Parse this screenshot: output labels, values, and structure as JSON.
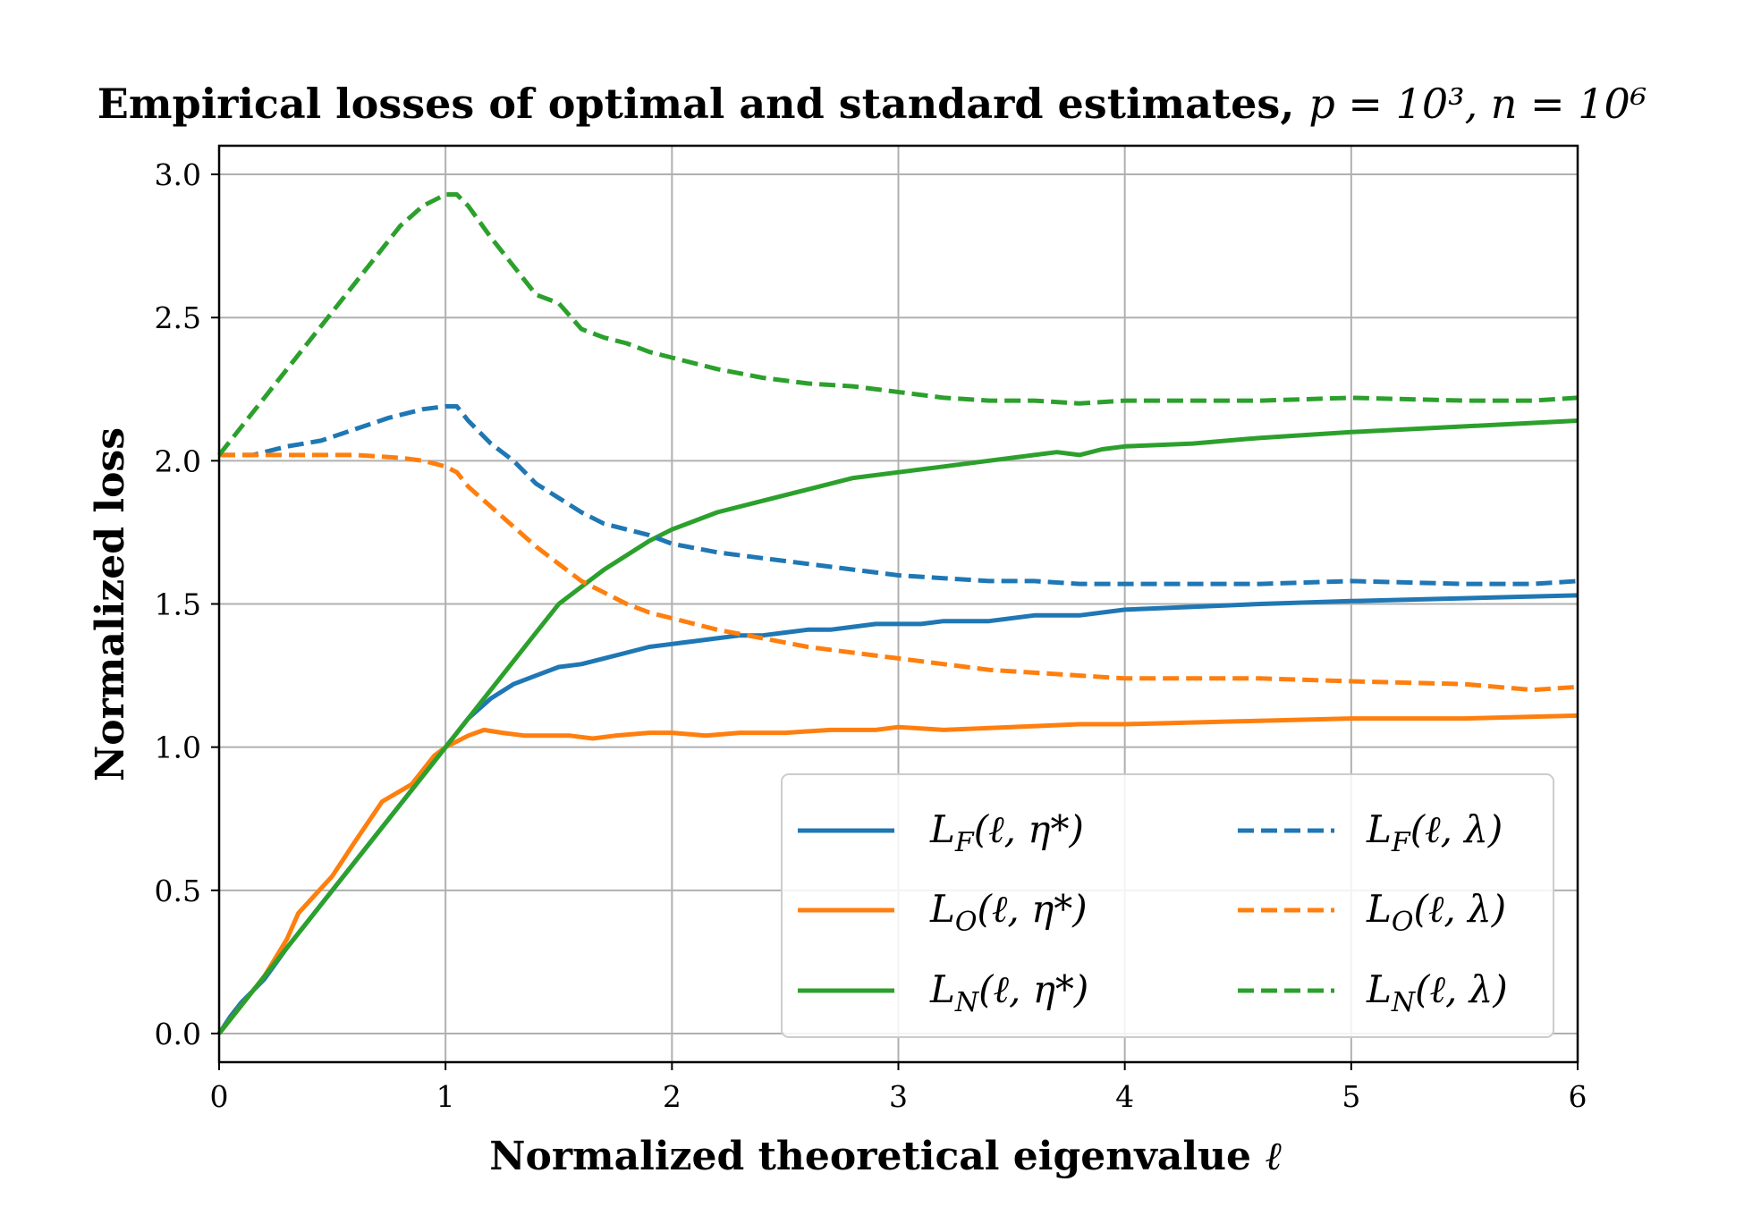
{
  "chart_data": {
    "type": "line",
    "title_text": "Empirical losses of optimal and standard estimates, ",
    "title_math": "p = 10³, n = 10⁶",
    "xlabel_text": "Normalized theoretical eigenvalue ",
    "xlabel_math": "ℓ",
    "ylabel": "Normalized loss",
    "xlim": [
      0,
      6
    ],
    "ylim": [
      -0.1,
      3.1
    ],
    "xticks": [
      0,
      1,
      2,
      3,
      4,
      5,
      6
    ],
    "yticks": [
      0.0,
      0.5,
      1.0,
      1.5,
      2.0,
      2.5,
      3.0
    ],
    "xtick_labels": [
      "0",
      "1",
      "2",
      "3",
      "4",
      "5",
      "6"
    ],
    "ytick_labels": [
      "0.0",
      "0.5",
      "1.0",
      "1.5",
      "2.0",
      "2.5",
      "3.0"
    ],
    "grid": true,
    "legend_position": "lower-right",
    "colors": {
      "blue": "#1f77b4",
      "orange": "#ff7f0e",
      "green": "#2ca02c"
    },
    "series": [
      {
        "name": "L_F(ℓ, η*)",
        "color": "#1f77b4",
        "dash": "solid",
        "x": [
          0,
          0.05,
          0.1,
          0.2,
          0.3,
          0.5,
          0.7,
          0.9,
          1.0,
          1.1,
          1.2,
          1.3,
          1.4,
          1.5,
          1.6,
          1.7,
          1.8,
          1.9,
          2.0,
          2.1,
          2.2,
          2.3,
          2.4,
          2.5,
          2.6,
          2.7,
          2.8,
          2.9,
          3.0,
          3.1,
          3.2,
          3.4,
          3.6,
          3.8,
          4.0,
          4.3,
          4.6,
          5.0,
          5.5,
          6.0
        ],
        "y": [
          0,
          0.06,
          0.11,
          0.19,
          0.3,
          0.5,
          0.7,
          0.9,
          1.0,
          1.1,
          1.17,
          1.22,
          1.25,
          1.28,
          1.29,
          1.31,
          1.33,
          1.35,
          1.36,
          1.37,
          1.38,
          1.39,
          1.39,
          1.4,
          1.41,
          1.41,
          1.42,
          1.43,
          1.43,
          1.43,
          1.44,
          1.44,
          1.46,
          1.46,
          1.48,
          1.49,
          1.5,
          1.51,
          1.52,
          1.53
        ]
      },
      {
        "name": "L_O(ℓ, η*)",
        "color": "#ff7f0e",
        "dash": "solid",
        "x": [
          0,
          0.1,
          0.2,
          0.3,
          0.35,
          0.5,
          0.6,
          0.72,
          0.85,
          0.95,
          1.0,
          1.1,
          1.17,
          1.25,
          1.35,
          1.45,
          1.55,
          1.65,
          1.75,
          1.9,
          2.0,
          2.15,
          2.3,
          2.5,
          2.7,
          2.9,
          3.0,
          3.2,
          3.5,
          3.8,
          4.0,
          4.5,
          5.0,
          5.5,
          6.0
        ],
        "y": [
          0,
          0.1,
          0.2,
          0.33,
          0.42,
          0.55,
          0.67,
          0.81,
          0.87,
          0.97,
          1.0,
          1.04,
          1.06,
          1.05,
          1.04,
          1.04,
          1.04,
          1.03,
          1.04,
          1.05,
          1.05,
          1.04,
          1.05,
          1.05,
          1.06,
          1.06,
          1.07,
          1.06,
          1.07,
          1.08,
          1.08,
          1.09,
          1.1,
          1.1,
          1.11
        ]
      },
      {
        "name": "L_N(ℓ, η*)",
        "color": "#2ca02c",
        "dash": "solid",
        "x": [
          0,
          0.25,
          0.5,
          0.75,
          1.0,
          1.2,
          1.4,
          1.5,
          1.7,
          1.9,
          2.0,
          2.2,
          2.4,
          2.6,
          2.8,
          3.0,
          3.2,
          3.4,
          3.6,
          3.7,
          3.8,
          3.9,
          4.0,
          4.3,
          4.6,
          5.0,
          5.5,
          6.0
        ],
        "y": [
          0,
          0.25,
          0.5,
          0.75,
          1.0,
          1.2,
          1.4,
          1.5,
          1.62,
          1.72,
          1.76,
          1.82,
          1.86,
          1.9,
          1.94,
          1.96,
          1.98,
          2.0,
          2.02,
          2.03,
          2.02,
          2.04,
          2.05,
          2.06,
          2.08,
          2.1,
          2.12,
          2.14
        ]
      },
      {
        "name": "L_F(ℓ, λ)",
        "color": "#1f77b4",
        "dash": "dashed",
        "x": [
          0,
          0.15,
          0.3,
          0.45,
          0.6,
          0.75,
          0.9,
          1.0,
          1.05,
          1.1,
          1.2,
          1.3,
          1.4,
          1.5,
          1.6,
          1.7,
          1.8,
          1.9,
          2.0,
          2.2,
          2.4,
          2.6,
          2.8,
          3.0,
          3.2,
          3.4,
          3.6,
          3.8,
          4.0,
          4.3,
          4.6,
          5.0,
          5.5,
          5.8,
          6.0
        ],
        "y": [
          2.02,
          2.02,
          2.05,
          2.07,
          2.11,
          2.15,
          2.18,
          2.19,
          2.19,
          2.14,
          2.06,
          2.0,
          1.92,
          1.87,
          1.82,
          1.78,
          1.76,
          1.74,
          1.71,
          1.68,
          1.66,
          1.64,
          1.62,
          1.6,
          1.59,
          1.58,
          1.58,
          1.57,
          1.57,
          1.57,
          1.57,
          1.58,
          1.57,
          1.57,
          1.58
        ]
      },
      {
        "name": "L_O(ℓ, λ)",
        "color": "#ff7f0e",
        "dash": "dashed",
        "x": [
          0,
          0.2,
          0.4,
          0.6,
          0.8,
          0.9,
          1.0,
          1.05,
          1.1,
          1.2,
          1.3,
          1.4,
          1.5,
          1.6,
          1.7,
          1.8,
          1.9,
          2.0,
          2.2,
          2.4,
          2.6,
          2.8,
          3.0,
          3.2,
          3.4,
          3.6,
          3.8,
          4.0,
          4.3,
          4.6,
          5.0,
          5.5,
          5.8,
          6.0
        ],
        "y": [
          2.02,
          2.02,
          2.02,
          2.02,
          2.01,
          2.0,
          1.98,
          1.96,
          1.91,
          1.84,
          1.77,
          1.7,
          1.64,
          1.58,
          1.54,
          1.5,
          1.47,
          1.45,
          1.41,
          1.38,
          1.35,
          1.33,
          1.31,
          1.29,
          1.27,
          1.26,
          1.25,
          1.24,
          1.24,
          1.24,
          1.23,
          1.22,
          1.2,
          1.21
        ]
      },
      {
        "name": "L_N(ℓ, λ)",
        "color": "#2ca02c",
        "dash": "dashed",
        "x": [
          0,
          0.2,
          0.4,
          0.6,
          0.8,
          0.9,
          1.0,
          1.05,
          1.1,
          1.2,
          1.3,
          1.4,
          1.5,
          1.6,
          1.7,
          1.8,
          1.9,
          2.0,
          2.2,
          2.4,
          2.6,
          2.8,
          3.0,
          3.2,
          3.4,
          3.6,
          3.8,
          4.0,
          4.3,
          4.6,
          5.0,
          5.5,
          5.8,
          6.0
        ],
        "y": [
          2.02,
          2.22,
          2.42,
          2.62,
          2.82,
          2.89,
          2.93,
          2.93,
          2.89,
          2.78,
          2.68,
          2.58,
          2.55,
          2.46,
          2.43,
          2.41,
          2.38,
          2.36,
          2.32,
          2.29,
          2.27,
          2.26,
          2.24,
          2.22,
          2.21,
          2.21,
          2.2,
          2.21,
          2.21,
          2.21,
          2.22,
          2.21,
          2.21,
          2.22
        ]
      }
    ],
    "legend_entries": [
      {
        "base": "L",
        "sub": "F",
        "arg": "(ℓ, η*)"
      },
      {
        "base": "L",
        "sub": "O",
        "arg": "(ℓ, η*)"
      },
      {
        "base": "L",
        "sub": "N",
        "arg": "(ℓ, η*)"
      },
      {
        "base": "L",
        "sub": "F",
        "arg": "(ℓ, λ)"
      },
      {
        "base": "L",
        "sub": "O",
        "arg": "(ℓ, λ)"
      },
      {
        "base": "L",
        "sub": "N",
        "arg": "(ℓ, λ)"
      }
    ]
  }
}
